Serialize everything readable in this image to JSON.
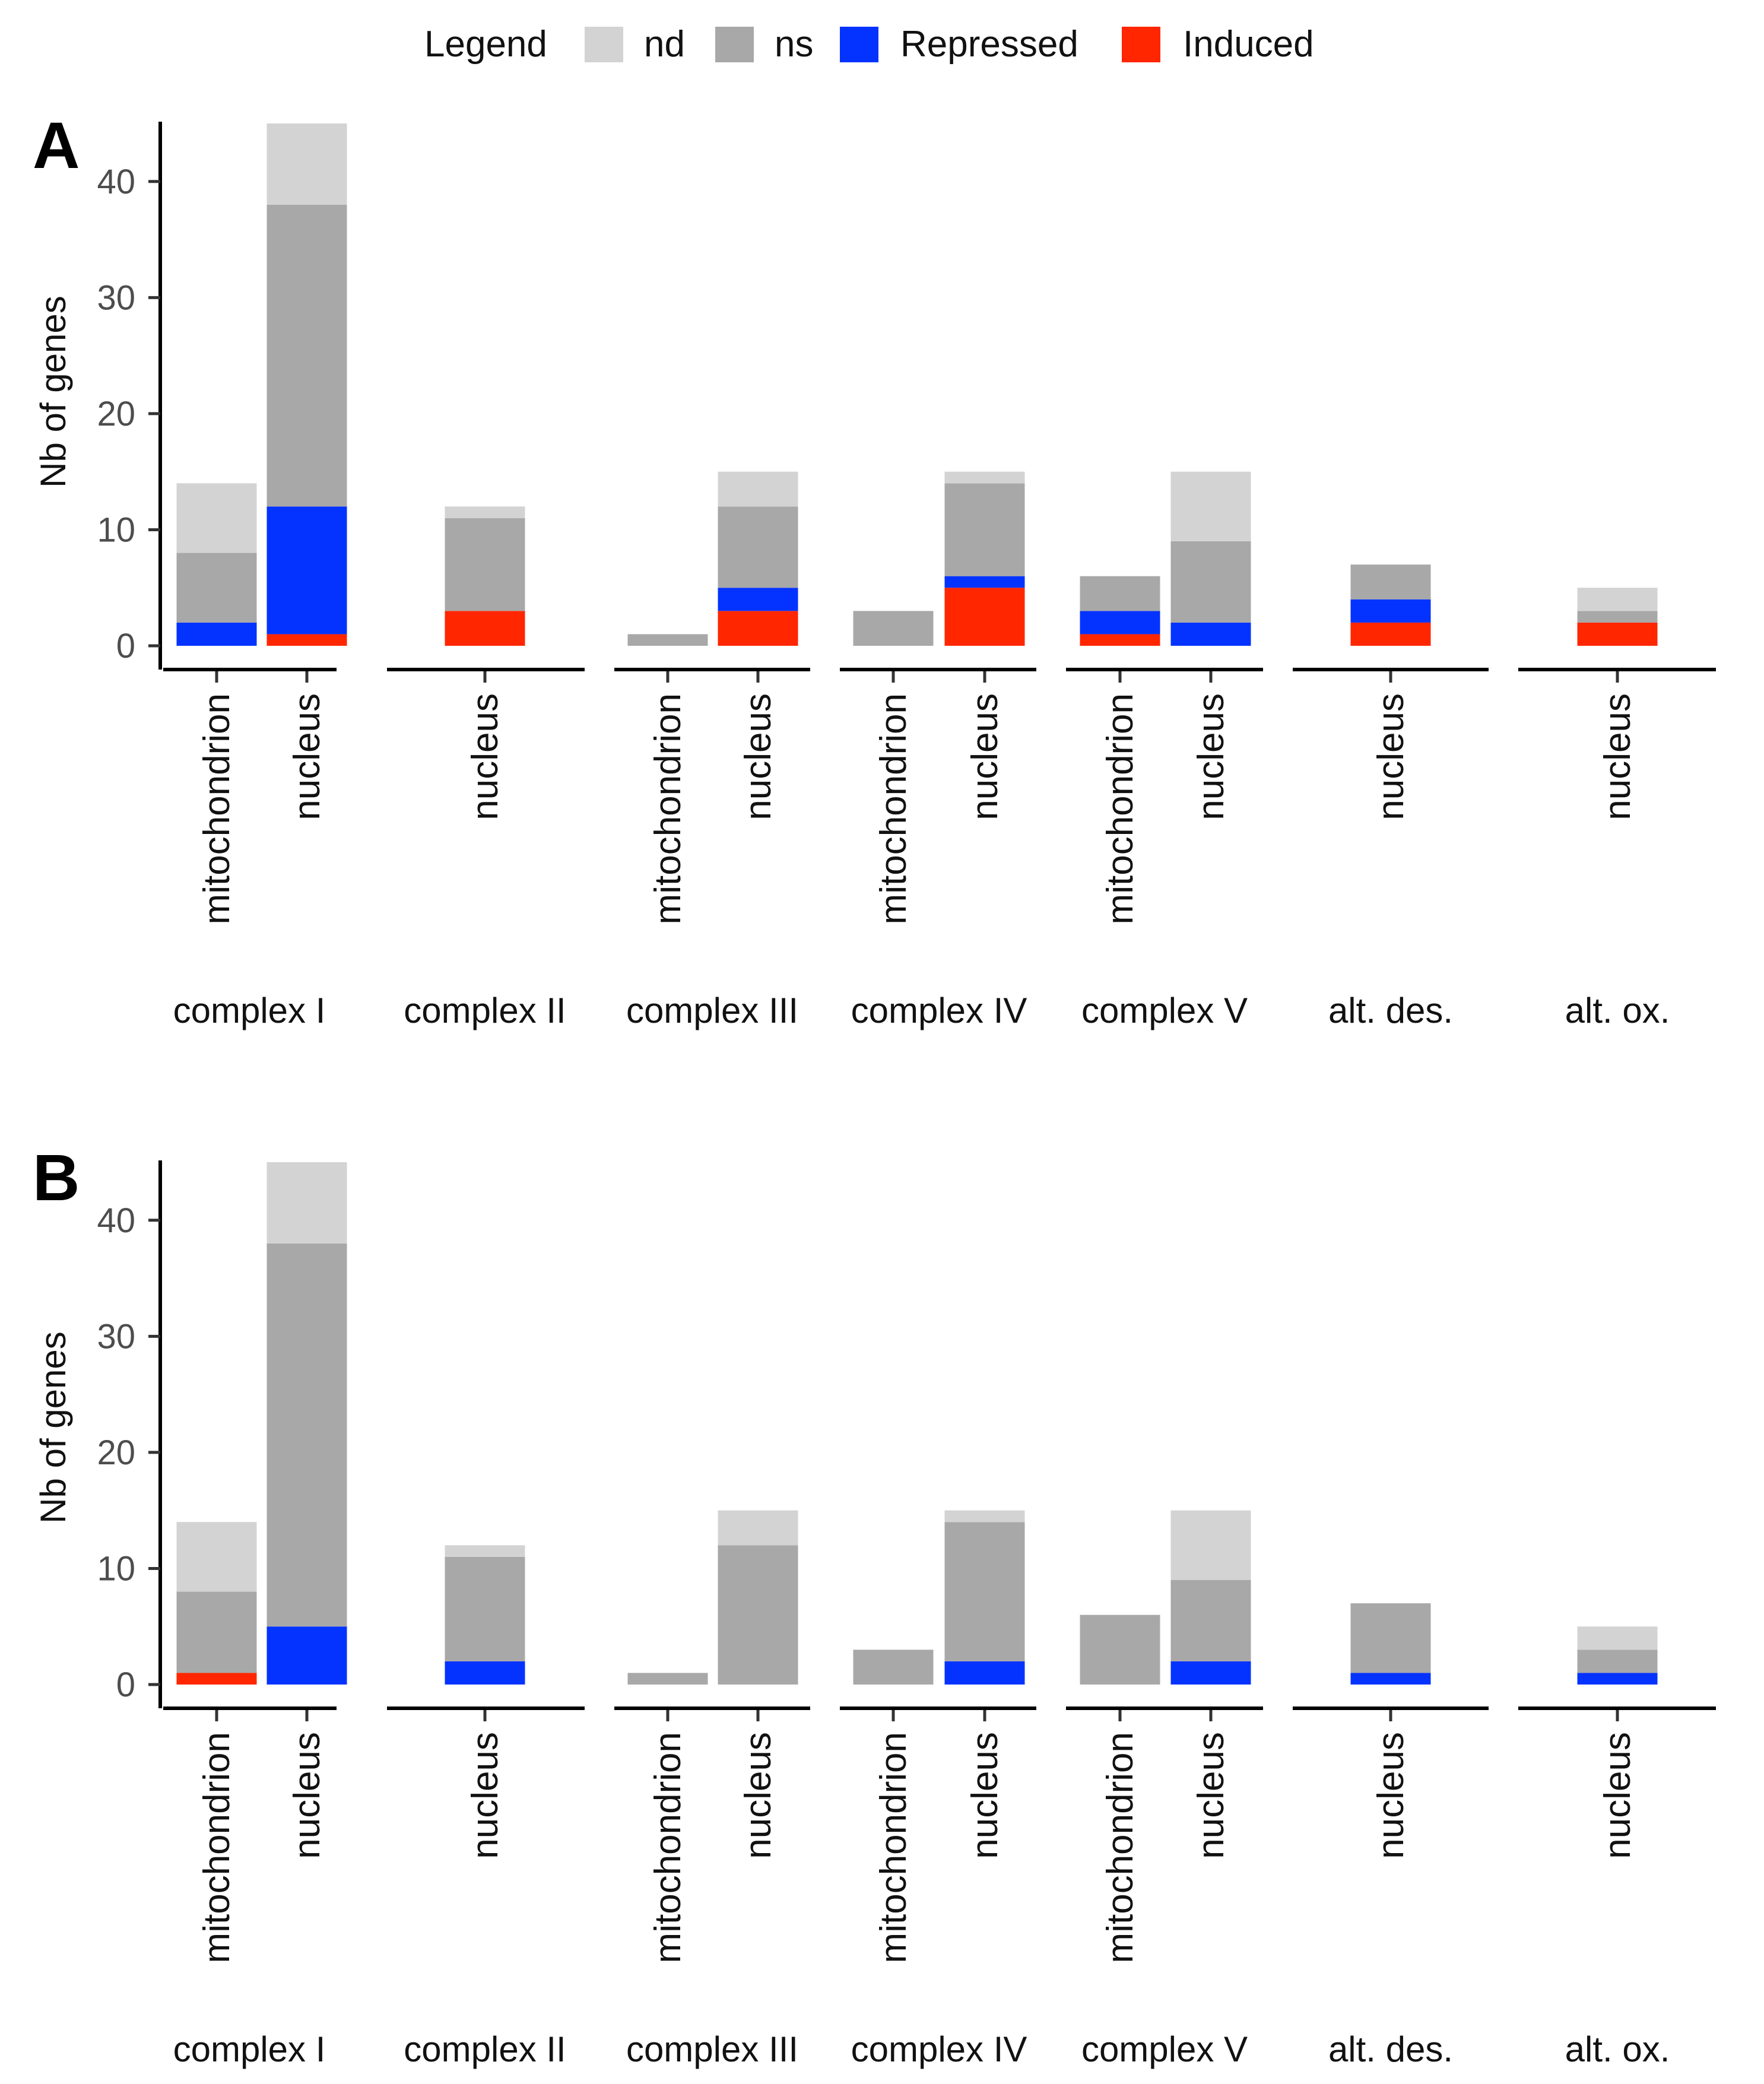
{
  "legend": {
    "title": "Legend",
    "items": [
      {
        "key": "nd",
        "label": "nd",
        "color": "#d3d3d3"
      },
      {
        "key": "ns",
        "label": "ns",
        "color": "#a8a8a8"
      },
      {
        "key": "Repressed",
        "label": "Repressed",
        "color": "#0433ff"
      },
      {
        "key": "Induced",
        "label": "Induced",
        "color": "#ff2600"
      }
    ]
  },
  "chart_data": [
    {
      "type": "bar",
      "stacked": true,
      "panel": "A",
      "ylabel": "Nb of genes",
      "ylim": [
        0,
        46
      ],
      "yticks": [
        0,
        10,
        20,
        30,
        40
      ],
      "stack_order": [
        "Induced",
        "Repressed",
        "ns",
        "nd"
      ],
      "groups": [
        {
          "name": "complex I",
          "bars": [
            {
              "label": "mitochondrion",
              "Induced": 0,
              "Repressed": 2,
              "ns": 6,
              "nd": 6
            },
            {
              "label": "nucleus",
              "Induced": 1,
              "Repressed": 11,
              "ns": 26,
              "nd": 7
            }
          ]
        },
        {
          "name": "complex II",
          "bars": [
            {
              "label": "nucleus",
              "Induced": 3,
              "Repressed": 0,
              "ns": 8,
              "nd": 1
            }
          ]
        },
        {
          "name": "complex III",
          "bars": [
            {
              "label": "mitochondrion",
              "Induced": 0,
              "Repressed": 0,
              "ns": 1,
              "nd": 0
            },
            {
              "label": "nucleus",
              "Induced": 3,
              "Repressed": 2,
              "ns": 7,
              "nd": 3
            }
          ]
        },
        {
          "name": "complex IV",
          "bars": [
            {
              "label": "mitochondrion",
              "Induced": 0,
              "Repressed": 0,
              "ns": 3,
              "nd": 0
            },
            {
              "label": "nucleus",
              "Induced": 5,
              "Repressed": 1,
              "ns": 8,
              "nd": 1
            }
          ]
        },
        {
          "name": "complex V",
          "bars": [
            {
              "label": "mitochondrion",
              "Induced": 1,
              "Repressed": 2,
              "ns": 3,
              "nd": 0
            },
            {
              "label": "nucleus",
              "Induced": 0,
              "Repressed": 2,
              "ns": 7,
              "nd": 6
            }
          ]
        },
        {
          "name": "alt. des.",
          "bars": [
            {
              "label": "nucleus",
              "Induced": 2,
              "Repressed": 2,
              "ns": 3,
              "nd": 0
            }
          ]
        },
        {
          "name": "alt. ox.",
          "bars": [
            {
              "label": "nucleus",
              "Induced": 2,
              "Repressed": 0,
              "ns": 1,
              "nd": 2
            }
          ]
        }
      ]
    },
    {
      "type": "bar",
      "stacked": true,
      "panel": "B",
      "ylabel": "Nb of genes",
      "ylim": [
        0,
        46
      ],
      "yticks": [
        0,
        10,
        20,
        30,
        40
      ],
      "stack_order": [
        "Induced",
        "Repressed",
        "ns",
        "nd"
      ],
      "groups": [
        {
          "name": "complex I",
          "bars": [
            {
              "label": "mitochondrion",
              "Induced": 1,
              "Repressed": 0,
              "ns": 7,
              "nd": 6
            },
            {
              "label": "nucleus",
              "Induced": 0,
              "Repressed": 5,
              "ns": 33,
              "nd": 7
            }
          ]
        },
        {
          "name": "complex II",
          "bars": [
            {
              "label": "nucleus",
              "Induced": 0,
              "Repressed": 2,
              "ns": 9,
              "nd": 1
            }
          ]
        },
        {
          "name": "complex III",
          "bars": [
            {
              "label": "mitochondrion",
              "Induced": 0,
              "Repressed": 0,
              "ns": 1,
              "nd": 0
            },
            {
              "label": "nucleus",
              "Induced": 0,
              "Repressed": 0,
              "ns": 12,
              "nd": 3
            }
          ]
        },
        {
          "name": "complex IV",
          "bars": [
            {
              "label": "mitochondrion",
              "Induced": 0,
              "Repressed": 0,
              "ns": 3,
              "nd": 0
            },
            {
              "label": "nucleus",
              "Induced": 0,
              "Repressed": 2,
              "ns": 12,
              "nd": 1
            }
          ]
        },
        {
          "name": "complex V",
          "bars": [
            {
              "label": "mitochondrion",
              "Induced": 0,
              "Repressed": 0,
              "ns": 6,
              "nd": 0
            },
            {
              "label": "nucleus",
              "Induced": 0,
              "Repressed": 2,
              "ns": 7,
              "nd": 6
            }
          ]
        },
        {
          "name": "alt. des.",
          "bars": [
            {
              "label": "nucleus",
              "Induced": 0,
              "Repressed": 1,
              "ns": 6,
              "nd": 0
            }
          ]
        },
        {
          "name": "alt. ox.",
          "bars": [
            {
              "label": "nucleus",
              "Induced": 0,
              "Repressed": 1,
              "ns": 2,
              "nd": 2
            }
          ]
        }
      ]
    }
  ]
}
